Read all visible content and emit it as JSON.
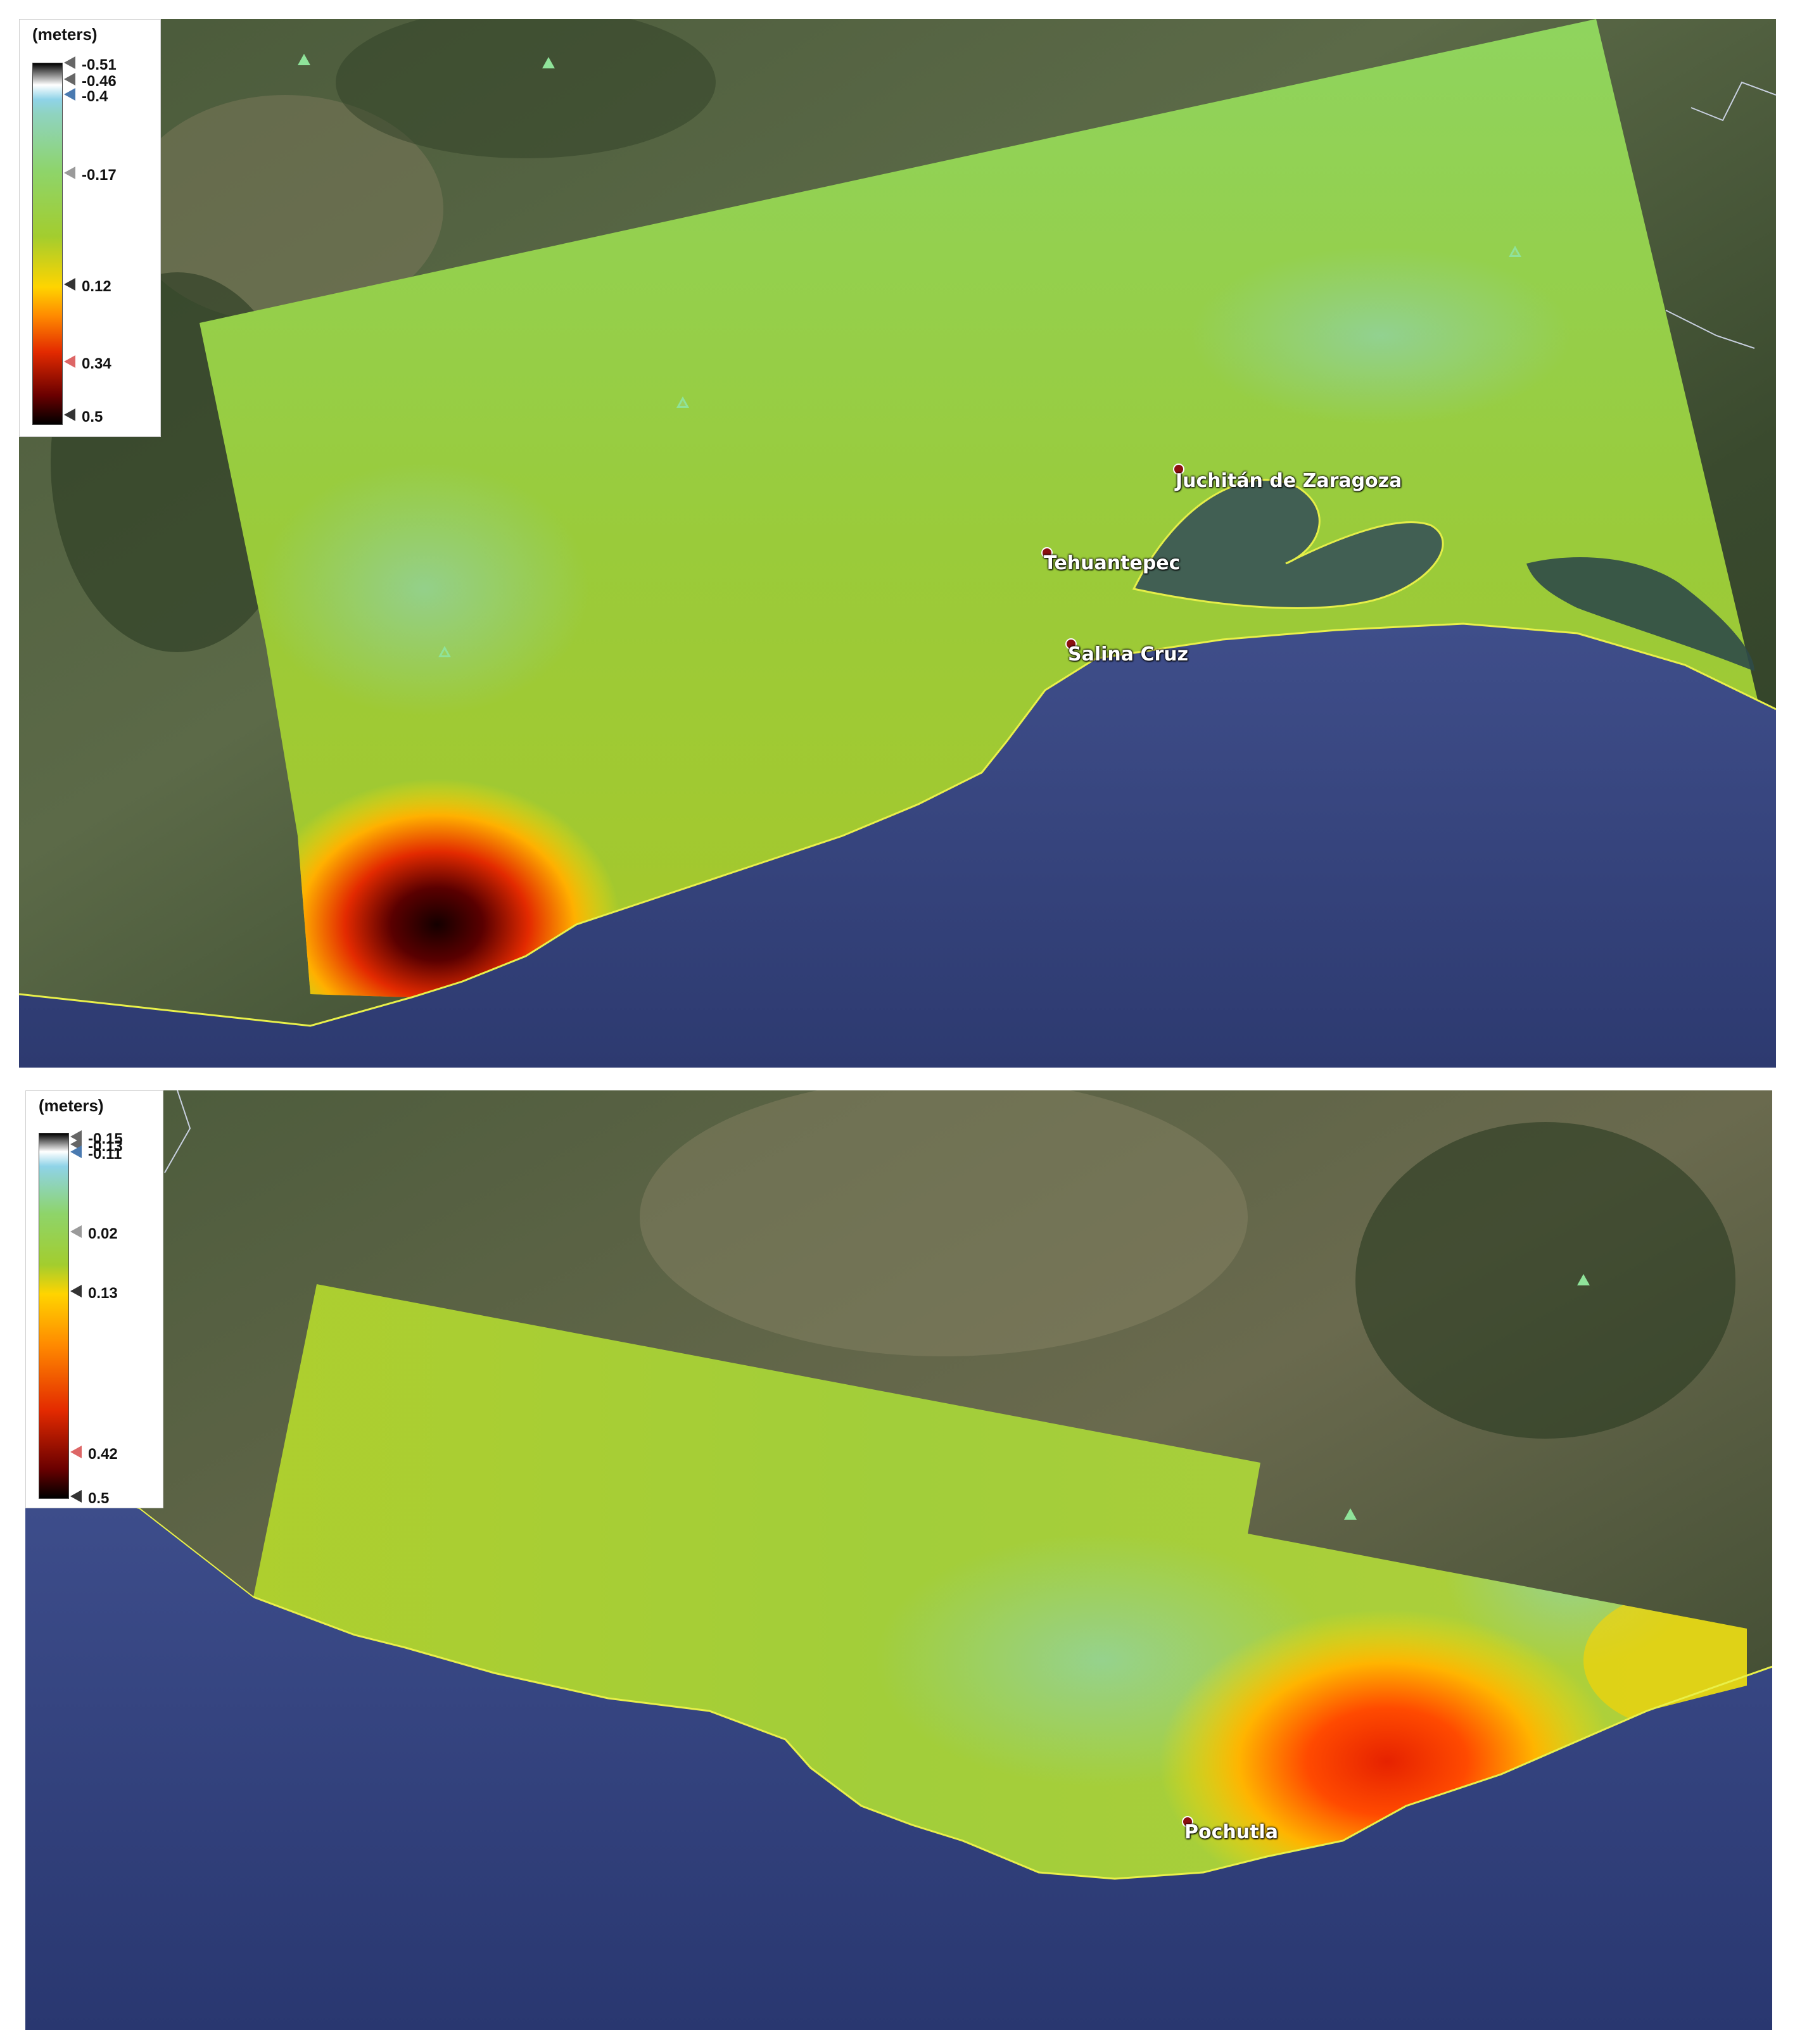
{
  "panels": [
    {
      "legend": {
        "units": "(meters)",
        "ticks": [
          {
            "label": "-0.51",
            "value": -0.51
          },
          {
            "label": "-0.46",
            "value": -0.46
          },
          {
            "label": "-0.4",
            "value": -0.4
          },
          {
            "label": "-0.17",
            "value": -0.17
          },
          {
            "label": "0.12",
            "value": 0.12
          },
          {
            "label": "0.34",
            "value": 0.34
          },
          {
            "label": "0.5",
            "value": 0.5
          }
        ],
        "colors": {
          "min": "#000000",
          "low": "#8fd3e8",
          "mid": "#9ccc3c",
          "high": "#ffd400",
          "max": "#000000"
        }
      },
      "places": [
        {
          "name": "Juchitán de Zaragoza"
        },
        {
          "name": "Tehuantepec"
        },
        {
          "name": "Salina Cruz"
        }
      ]
    },
    {
      "legend": {
        "units": "(meters)",
        "ticks": [
          {
            "label": "-0.15",
            "value": -0.15
          },
          {
            "label": "-0.13",
            "value": -0.13
          },
          {
            "label": "-0.11",
            "value": -0.11
          },
          {
            "label": "0.02",
            "value": 0.02
          },
          {
            "label": "0.13",
            "value": 0.13
          },
          {
            "label": "0.42",
            "value": 0.42
          },
          {
            "label": "0.5",
            "value": 0.5
          }
        ]
      },
      "places": [
        {
          "name": "Pochutla"
        }
      ]
    }
  ]
}
